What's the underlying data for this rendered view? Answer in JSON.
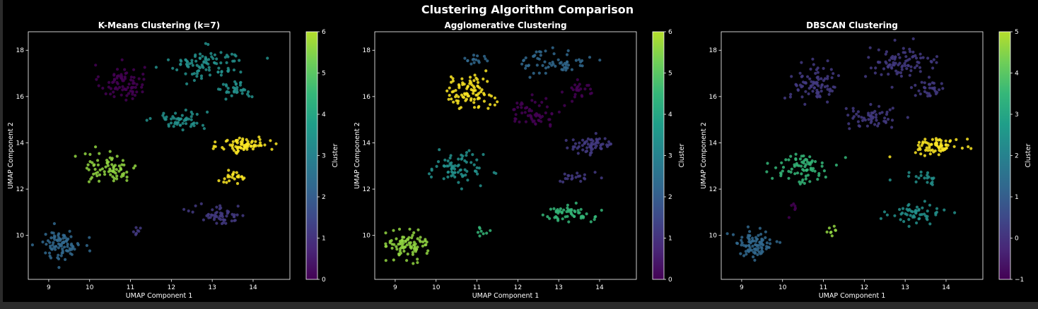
{
  "figure": {
    "suptitle": "Clustering Algorithm Comparison"
  },
  "colors": {
    "background": "#000000",
    "axes": "#ffffff",
    "colormap": "viridis"
  },
  "chart_data": [
    {
      "type": "scatter",
      "title": "K-Means Clustering (k=7)",
      "xlabel": "UMAP Component 1",
      "ylabel": "UMAP Component 2",
      "xlim": [
        8.5,
        14.9
      ],
      "ylim": [
        8.1,
        18.8
      ],
      "xticks": [
        9,
        10,
        11,
        12,
        13,
        14
      ],
      "yticks": [
        10,
        12,
        14,
        16,
        18
      ],
      "grid": false,
      "colorbar": {
        "label": "Cluster",
        "min": 0,
        "max": 6,
        "ticks": [
          0,
          1,
          2,
          3,
          4,
          5,
          6
        ]
      },
      "series": [
        {
          "cluster": 0,
          "center": [
            10.8,
            16.6
          ],
          "spread": [
            0.45,
            0.65
          ],
          "count": 80
        },
        {
          "cluster": 3,
          "center": [
            12.2,
            15.0
          ],
          "spread": [
            0.55,
            0.35
          ],
          "count": 55
        },
        {
          "cluster": 3,
          "center": [
            12.9,
            17.4
          ],
          "spread": [
            0.75,
            0.55
          ],
          "count": 95
        },
        {
          "cluster": 3,
          "center": [
            13.6,
            16.3
          ],
          "spread": [
            0.3,
            0.3
          ],
          "count": 35
        },
        {
          "cluster": 6,
          "center": [
            13.8,
            13.9
          ],
          "spread": [
            0.5,
            0.3
          ],
          "count": 75
        },
        {
          "cluster": 6,
          "center": [
            13.5,
            12.5
          ],
          "spread": [
            0.35,
            0.2
          ],
          "count": 25
        },
        {
          "cluster": 5,
          "center": [
            10.5,
            12.9
          ],
          "spread": [
            0.55,
            0.55
          ],
          "count": 75
        },
        {
          "cluster": 1,
          "center": [
            13.2,
            10.9
          ],
          "spread": [
            0.55,
            0.35
          ],
          "count": 55
        },
        {
          "cluster": 1,
          "center": [
            11.2,
            10.2
          ],
          "spread": [
            0.15,
            0.2
          ],
          "count": 8
        },
        {
          "cluster": 2,
          "center": [
            9.3,
            9.6
          ],
          "spread": [
            0.4,
            0.5
          ],
          "count": 90
        }
      ]
    },
    {
      "type": "scatter",
      "title": "Agglomerative Clustering",
      "xlabel": "UMAP Component 1",
      "ylabel": "UMAP Component 2",
      "xlim": [
        8.5,
        14.9
      ],
      "ylim": [
        8.1,
        18.8
      ],
      "xticks": [
        9,
        10,
        11,
        12,
        13,
        14
      ],
      "yticks": [
        10,
        12,
        14,
        16,
        18
      ],
      "grid": false,
      "colorbar": {
        "label": "Cluster",
        "min": 0,
        "max": 6,
        "ticks": [
          0,
          1,
          2,
          3,
          4,
          5,
          6
        ]
      },
      "series": [
        {
          "cluster": 6,
          "center": [
            10.8,
            16.2
          ],
          "spread": [
            0.5,
            0.6
          ],
          "count": 90
        },
        {
          "cluster": 2,
          "center": [
            11.0,
            17.6
          ],
          "spread": [
            0.3,
            0.2
          ],
          "count": 15
        },
        {
          "cluster": 2,
          "center": [
            12.9,
            17.5
          ],
          "spread": [
            0.65,
            0.45
          ],
          "count": 60
        },
        {
          "cluster": 0,
          "center": [
            12.4,
            15.3
          ],
          "spread": [
            0.55,
            0.5
          ],
          "count": 60
        },
        {
          "cluster": 0,
          "center": [
            13.5,
            16.3
          ],
          "spread": [
            0.3,
            0.3
          ],
          "count": 25
        },
        {
          "cluster": 1,
          "center": [
            13.8,
            13.9
          ],
          "spread": [
            0.5,
            0.3
          ],
          "count": 65
        },
        {
          "cluster": 1,
          "center": [
            13.5,
            12.5
          ],
          "spread": [
            0.35,
            0.2
          ],
          "count": 20
        },
        {
          "cluster": 3,
          "center": [
            10.5,
            12.9
          ],
          "spread": [
            0.55,
            0.55
          ],
          "count": 75
        },
        {
          "cluster": 4,
          "center": [
            13.2,
            10.9
          ],
          "spread": [
            0.55,
            0.35
          ],
          "count": 55
        },
        {
          "cluster": 4,
          "center": [
            11.2,
            10.2
          ],
          "spread": [
            0.15,
            0.2
          ],
          "count": 8
        },
        {
          "cluster": 5,
          "center": [
            9.3,
            9.6
          ],
          "spread": [
            0.4,
            0.5
          ],
          "count": 90
        }
      ]
    },
    {
      "type": "scatter",
      "title": "DBSCAN Clustering",
      "xlabel": "UMAP Component 1",
      "ylabel": "UMAP Component 2",
      "xlim": [
        8.5,
        14.9
      ],
      "ylim": [
        8.1,
        18.8
      ],
      "xticks": [
        9,
        10,
        11,
        12,
        13,
        14
      ],
      "yticks": [
        10,
        12,
        14,
        16,
        18
      ],
      "grid": false,
      "colorbar": {
        "label": "Cluster",
        "min": -1,
        "max": 5,
        "ticks": [
          -1,
          0,
          1,
          2,
          3,
          4,
          5
        ]
      },
      "series": [
        {
          "cluster": 0,
          "center": [
            10.8,
            16.6
          ],
          "spread": [
            0.5,
            0.65
          ],
          "count": 85
        },
        {
          "cluster": 0,
          "center": [
            12.2,
            15.1
          ],
          "spread": [
            0.55,
            0.4
          ],
          "count": 55
        },
        {
          "cluster": 0,
          "center": [
            12.9,
            17.4
          ],
          "spread": [
            0.75,
            0.55
          ],
          "count": 90
        },
        {
          "cluster": 0,
          "center": [
            13.6,
            16.3
          ],
          "spread": [
            0.3,
            0.3
          ],
          "count": 30
        },
        {
          "cluster": 5,
          "center": [
            13.8,
            13.9
          ],
          "spread": [
            0.5,
            0.3
          ],
          "count": 70
        },
        {
          "cluster": 2,
          "center": [
            13.5,
            12.5
          ],
          "spread": [
            0.35,
            0.2
          ],
          "count": 20
        },
        {
          "cluster": 2,
          "center": [
            13.2,
            10.9
          ],
          "spread": [
            0.55,
            0.35
          ],
          "count": 55
        },
        {
          "cluster": 3,
          "center": [
            10.5,
            12.9
          ],
          "spread": [
            0.55,
            0.55
          ],
          "count": 75
        },
        {
          "cluster": 4,
          "center": [
            11.2,
            10.2
          ],
          "spread": [
            0.15,
            0.2
          ],
          "count": 8
        },
        {
          "cluster": 1,
          "center": [
            9.3,
            9.6
          ],
          "spread": [
            0.4,
            0.5
          ],
          "count": 90
        },
        {
          "cluster": -1,
          "center": [
            10.2,
            11.3
          ],
          "spread": [
            0.2,
            0.4
          ],
          "count": 6
        }
      ]
    }
  ]
}
